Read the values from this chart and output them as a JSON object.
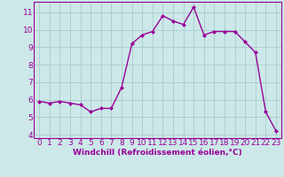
{
  "x": [
    0,
    1,
    2,
    3,
    4,
    5,
    6,
    7,
    8,
    9,
    10,
    11,
    12,
    13,
    14,
    15,
    16,
    17,
    18,
    19,
    20,
    21,
    22,
    23
  ],
  "y": [
    5.9,
    5.8,
    5.9,
    5.8,
    5.7,
    5.3,
    5.5,
    5.5,
    6.7,
    9.2,
    9.7,
    9.9,
    10.8,
    10.5,
    10.3,
    11.3,
    9.7,
    9.9,
    9.9,
    9.9,
    9.3,
    8.7,
    5.3,
    4.2
  ],
  "line_color": "#990099",
  "marker": "D",
  "marker_size": 2.0,
  "background_color": "#cce8e8",
  "grid_color": "#aacccc",
  "xlabel": "Windchill (Refroidissement éolien,°C)",
  "xlabel_color": "#990099",
  "tick_color": "#990099",
  "ylim": [
    3.8,
    11.6
  ],
  "xlim": [
    -0.5,
    23.5
  ],
  "yticks": [
    4,
    5,
    6,
    7,
    8,
    9,
    10,
    11
  ],
  "xticks": [
    0,
    1,
    2,
    3,
    4,
    5,
    6,
    7,
    8,
    9,
    10,
    11,
    12,
    13,
    14,
    15,
    16,
    17,
    18,
    19,
    20,
    21,
    22,
    23
  ],
  "linewidth": 1.0,
  "font_size": 6.5
}
